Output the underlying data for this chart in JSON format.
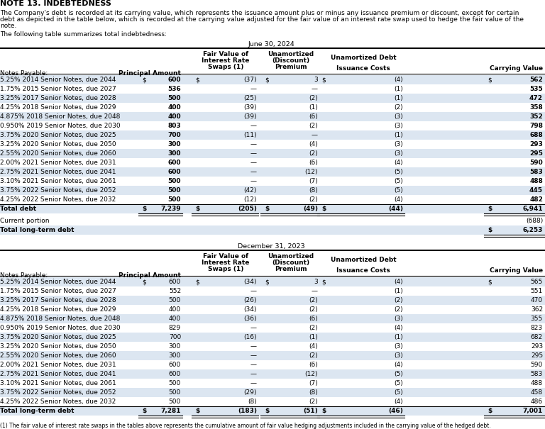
{
  "title": "NOTE 13. INDEBTEDNESS",
  "intro_lines": [
    "The Company's debt is recorded at its carrying value, which represents the issuance amount plus or minus any issuance premium or discount, except for certain",
    "debt as depicted in the table below, which is recorded at the carrying value adjusted for the fair value of an interest rate swap used to hedge the fair value of the",
    "note."
  ],
  "summary_text": "The following table summarizes total indebtedness:",
  "section1_title": "June 30, 2024",
  "section2_title": "December 31, 2023",
  "june2024_rows": [
    [
      "5.25% 2014 Senior Notes, due 2044",
      "600",
      "(37)",
      "3",
      "(4)",
      "562",
      true,
      true,
      true,
      true,
      true
    ],
    [
      "1.75% 2015 Senior Notes, due 2027",
      "536",
      "—",
      "—",
      "(1)",
      "535",
      false,
      false,
      false,
      false,
      false
    ],
    [
      "3.25% 2017 Senior Notes, due 2028",
      "500",
      "(25)",
      "(2)",
      "(1)",
      "472",
      false,
      false,
      false,
      false,
      false
    ],
    [
      "4.25% 2018 Senior Notes, due 2029",
      "400",
      "(39)",
      "(1)",
      "(2)",
      "358",
      false,
      false,
      false,
      false,
      false
    ],
    [
      "4.875% 2018 Senior Notes, due 2048",
      "400",
      "(39)",
      "(6)",
      "(3)",
      "352",
      false,
      false,
      false,
      false,
      false
    ],
    [
      "0.950% 2019 Senior Notes, due 2030",
      "803",
      "—",
      "(2)",
      "(3)",
      "798",
      false,
      false,
      false,
      false,
      false
    ],
    [
      "3.75% 2020 Senior Notes, due 2025",
      "700",
      "(11)",
      "—",
      "(1)",
      "688",
      false,
      false,
      false,
      false,
      false
    ],
    [
      "3.25% 2020 Senior Notes, due 2050",
      "300",
      "—",
      "(4)",
      "(3)",
      "293",
      false,
      false,
      false,
      false,
      false
    ],
    [
      "2.55% 2020 Senior Notes, due 2060",
      "300",
      "—",
      "(2)",
      "(3)",
      "295",
      false,
      false,
      false,
      false,
      false
    ],
    [
      "2.00% 2021 Senior Notes, due 2031",
      "600",
      "—",
      "(6)",
      "(4)",
      "590",
      false,
      false,
      false,
      false,
      false
    ],
    [
      "2.75% 2021 Senior Notes, due 2041",
      "600",
      "—",
      "(12)",
      "(5)",
      "583",
      false,
      false,
      false,
      false,
      false
    ],
    [
      "3.10% 2021 Senior Notes, due 2061",
      "500",
      "—",
      "(7)",
      "(5)",
      "488",
      false,
      false,
      false,
      false,
      false
    ],
    [
      "3.75% 2022 Senior Notes, due 2052",
      "500",
      "(42)",
      "(8)",
      "(5)",
      "445",
      false,
      false,
      false,
      false,
      false
    ],
    [
      "4.25% 2022 Senior Notes, due 2032",
      "500",
      "(12)",
      "(2)",
      "(4)",
      "482",
      false,
      false,
      false,
      false,
      false
    ]
  ],
  "dec2023_rows": [
    [
      "5.25% 2014 Senior Notes, due 2044",
      "600",
      "(34)",
      "3",
      "(4)",
      "565",
      true,
      true,
      true,
      true,
      true
    ],
    [
      "1.75% 2015 Senior Notes, due 2027",
      "552",
      "—",
      "—",
      "(1)",
      "551",
      false,
      false,
      false,
      false,
      false
    ],
    [
      "3.25% 2017 Senior Notes, due 2028",
      "500",
      "(26)",
      "(2)",
      "(2)",
      "470",
      false,
      false,
      false,
      false,
      false
    ],
    [
      "4.25% 2018 Senior Notes, due 2029",
      "400",
      "(34)",
      "(2)",
      "(2)",
      "362",
      false,
      false,
      false,
      false,
      false
    ],
    [
      "4.875% 2018 Senior Notes, due 2048",
      "400",
      "(36)",
      "(6)",
      "(3)",
      "355",
      false,
      false,
      false,
      false,
      false
    ],
    [
      "0.950% 2019 Senior Notes, due 2030",
      "829",
      "—",
      "(2)",
      "(4)",
      "823",
      false,
      false,
      false,
      false,
      false
    ],
    [
      "3.75% 2020 Senior Notes, due 2025",
      "700",
      "(16)",
      "(1)",
      "(1)",
      "682",
      false,
      false,
      false,
      false,
      false
    ],
    [
      "3.25% 2020 Senior Notes, due 2050",
      "300",
      "—",
      "(4)",
      "(3)",
      "293",
      false,
      false,
      false,
      false,
      false
    ],
    [
      "2.55% 2020 Senior Notes, due 2060",
      "300",
      "—",
      "(2)",
      "(3)",
      "295",
      false,
      false,
      false,
      false,
      false
    ],
    [
      "2.00% 2021 Senior Notes, due 2031",
      "600",
      "—",
      "(6)",
      "(4)",
      "590",
      false,
      false,
      false,
      false,
      false
    ],
    [
      "2.75% 2021 Senior Notes, due 2041",
      "600",
      "—",
      "(12)",
      "(5)",
      "583",
      false,
      false,
      false,
      false,
      false
    ],
    [
      "3.10% 2021 Senior Notes, due 2061",
      "500",
      "—",
      "(7)",
      "(5)",
      "488",
      false,
      false,
      false,
      false,
      false
    ],
    [
      "3.75% 2022 Senior Notes, due 2052",
      "500",
      "(29)",
      "(8)",
      "(5)",
      "458",
      false,
      false,
      false,
      false,
      false
    ],
    [
      "4.25% 2022 Senior Notes, due 2032",
      "500",
      "(8)",
      "(2)",
      "(4)",
      "486",
      false,
      false,
      false,
      false,
      false
    ]
  ],
  "footnote": "(1) The fair value of interest rate swaps in the tables above represents the cumulative amount of fair value hedging adjustments included in the carrying value of the hedged debt.",
  "bg_light": "#dce6f1",
  "bg_white": "#ffffff"
}
